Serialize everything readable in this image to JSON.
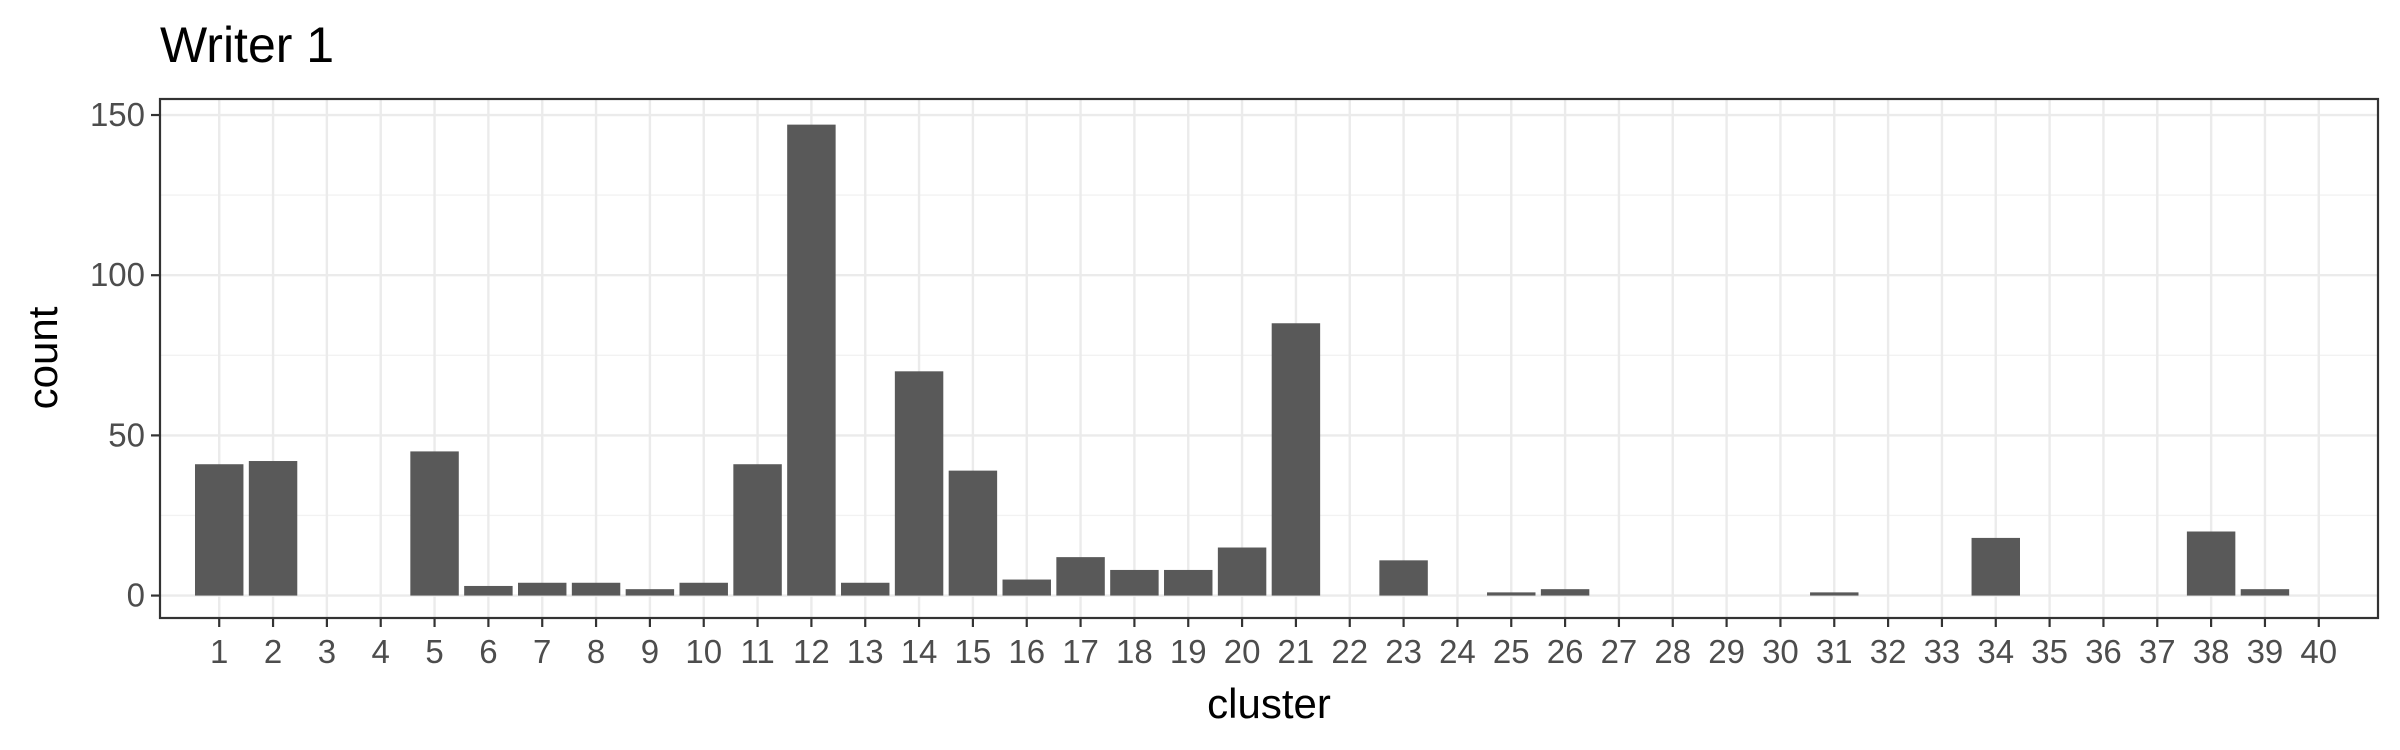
{
  "chart_data": {
    "type": "bar",
    "title": "Writer 1",
    "xlabel": "cluster",
    "ylabel": "count",
    "categories": [
      "1",
      "2",
      "3",
      "4",
      "5",
      "6",
      "7",
      "8",
      "9",
      "10",
      "11",
      "12",
      "13",
      "14",
      "15",
      "16",
      "17",
      "18",
      "19",
      "20",
      "21",
      "22",
      "23",
      "24",
      "25",
      "26",
      "27",
      "28",
      "29",
      "30",
      "31",
      "32",
      "33",
      "34",
      "35",
      "36",
      "37",
      "38",
      "39",
      "40"
    ],
    "values": [
      41,
      42,
      0,
      0,
      45,
      3,
      4,
      4,
      2,
      4,
      41,
      147,
      4,
      70,
      39,
      5,
      12,
      8,
      8,
      15,
      85,
      0,
      11,
      0,
      1,
      2,
      0,
      0,
      0,
      0,
      1,
      0,
      0,
      18,
      0,
      0,
      0,
      20,
      2,
      0
    ],
    "yticks": [
      0,
      50,
      100,
      150
    ],
    "ylim": [
      -7,
      155
    ],
    "grid": true,
    "bar_color": "#595959"
  }
}
